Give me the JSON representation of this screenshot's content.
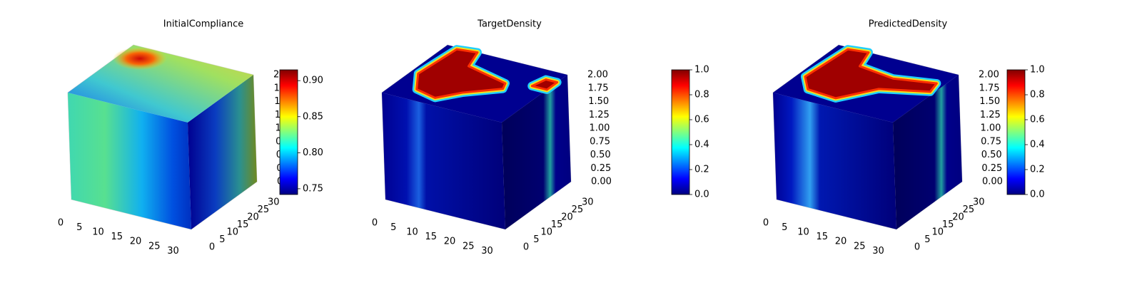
{
  "chart_data": [
    {
      "type": "voxel",
      "title": "InitialCompliance",
      "xlim": [
        0,
        32
      ],
      "xticks": [
        0,
        5,
        10,
        15,
        20,
        25,
        30
      ],
      "ylim": [
        0,
        32
      ],
      "yticks": [
        0,
        5,
        10,
        15,
        20,
        25,
        30
      ],
      "zlim": [
        0,
        2
      ],
      "zticks": [
        {
          "value": 0,
          "label": "0.00"
        },
        0.25,
        {
          "value": 0.5,
          "label": "0.50"
        },
        0.75,
        {
          "value": 1,
          "label": "1.00"
        },
        1.25,
        {
          "value": 1.5,
          "label": "1.50"
        },
        1.75,
        {
          "value": 2,
          "label": "2.00"
        }
      ],
      "colorbar": {
        "colormap": "jet",
        "clim": [
          0.742,
          0.915
        ],
        "ticks": [
          0.75,
          {
            "value": 0.8,
            "label": "0.80"
          },
          0.85,
          {
            "value": 0.9,
            "label": "0.90"
          }
        ]
      }
    },
    {
      "type": "voxel",
      "title": "TargetDensity",
      "xlim": [
        0,
        32
      ],
      "xticks": [
        0,
        5,
        10,
        15,
        20,
        25,
        30
      ],
      "ylim": [
        0,
        32
      ],
      "yticks": [
        0,
        5,
        10,
        15,
        20,
        25,
        30
      ],
      "zlim": [
        0,
        2
      ],
      "zticks": [
        {
          "value": 0,
          "label": "0.00"
        },
        0.25,
        {
          "value": 0.5,
          "label": "0.50"
        },
        0.75,
        {
          "value": 1,
          "label": "1.00"
        },
        1.25,
        {
          "value": 1.5,
          "label": "1.50"
        },
        1.75,
        {
          "value": 2,
          "label": "2.00"
        }
      ],
      "colorbar": {
        "colormap": "jet",
        "clim": [
          0,
          1
        ],
        "ticks": [
          {
            "value": 0,
            "label": "0.0"
          },
          0.2,
          0.4,
          0.6,
          0.8,
          {
            "value": 1,
            "label": "1.0"
          }
        ]
      }
    },
    {
      "type": "voxel",
      "title": "PredictedDensity",
      "xlim": [
        0,
        32
      ],
      "xticks": [
        0,
        5,
        10,
        15,
        20,
        25,
        30
      ],
      "ylim": [
        0,
        32
      ],
      "yticks": [
        0,
        5,
        10,
        15,
        20,
        25,
        30
      ],
      "zlim": [
        0,
        2
      ],
      "zticks": [
        {
          "value": 0,
          "label": "0.00"
        },
        0.25,
        {
          "value": 0.5,
          "label": "0.50"
        },
        0.75,
        {
          "value": 1,
          "label": "1.00"
        },
        1.25,
        {
          "value": 1.5,
          "label": "1.50"
        },
        1.75,
        {
          "value": 2,
          "label": "2.00"
        }
      ],
      "colorbar": {
        "colormap": "jet",
        "clim": [
          0,
          1
        ],
        "ticks": [
          {
            "value": 0,
            "label": "0.0"
          },
          0.2,
          0.4,
          0.6,
          0.8,
          {
            "value": 1,
            "label": "1.0"
          }
        ]
      }
    }
  ]
}
